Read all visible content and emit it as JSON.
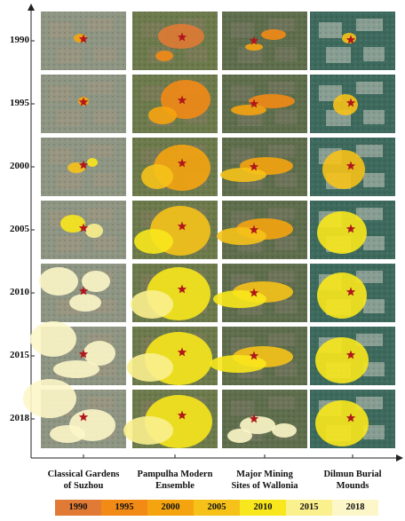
{
  "years": [
    "1990",
    "1995",
    "2000",
    "2005",
    "2010",
    "2015",
    "2018"
  ],
  "sites": [
    {
      "line1": "Classical Gardens",
      "line2": "of Suzhou",
      "base": "#8e9683",
      "settle": "#a0957f"
    },
    {
      "line1": "Pampulha Modern",
      "line2": "Ensemble",
      "base": "#6c7a4c",
      "settle": "#857b60"
    },
    {
      "line1": "Major Mining",
      "line2": "Sites of Wallonia",
      "base": "#5f6e4c",
      "settle": "#7a7a66"
    },
    {
      "line1": "Dilmun Burial",
      "line2": "Mounds",
      "base": "#3e6a5e",
      "settle": "#c7c8bf"
    }
  ],
  "legend": [
    {
      "label": "1990",
      "color": "#e07a35"
    },
    {
      "label": "1995",
      "color": "#f28a16"
    },
    {
      "label": "2000",
      "color": "#f5a410"
    },
    {
      "label": "2005",
      "color": "#f6c21a"
    },
    {
      "label": "2010",
      "color": "#f8e71c"
    },
    {
      "label": "2015",
      "color": "#fbf08e"
    },
    {
      "label": "2018",
      "color": "#fcf6c8"
    }
  ],
  "star_color": "#b0161b"
}
